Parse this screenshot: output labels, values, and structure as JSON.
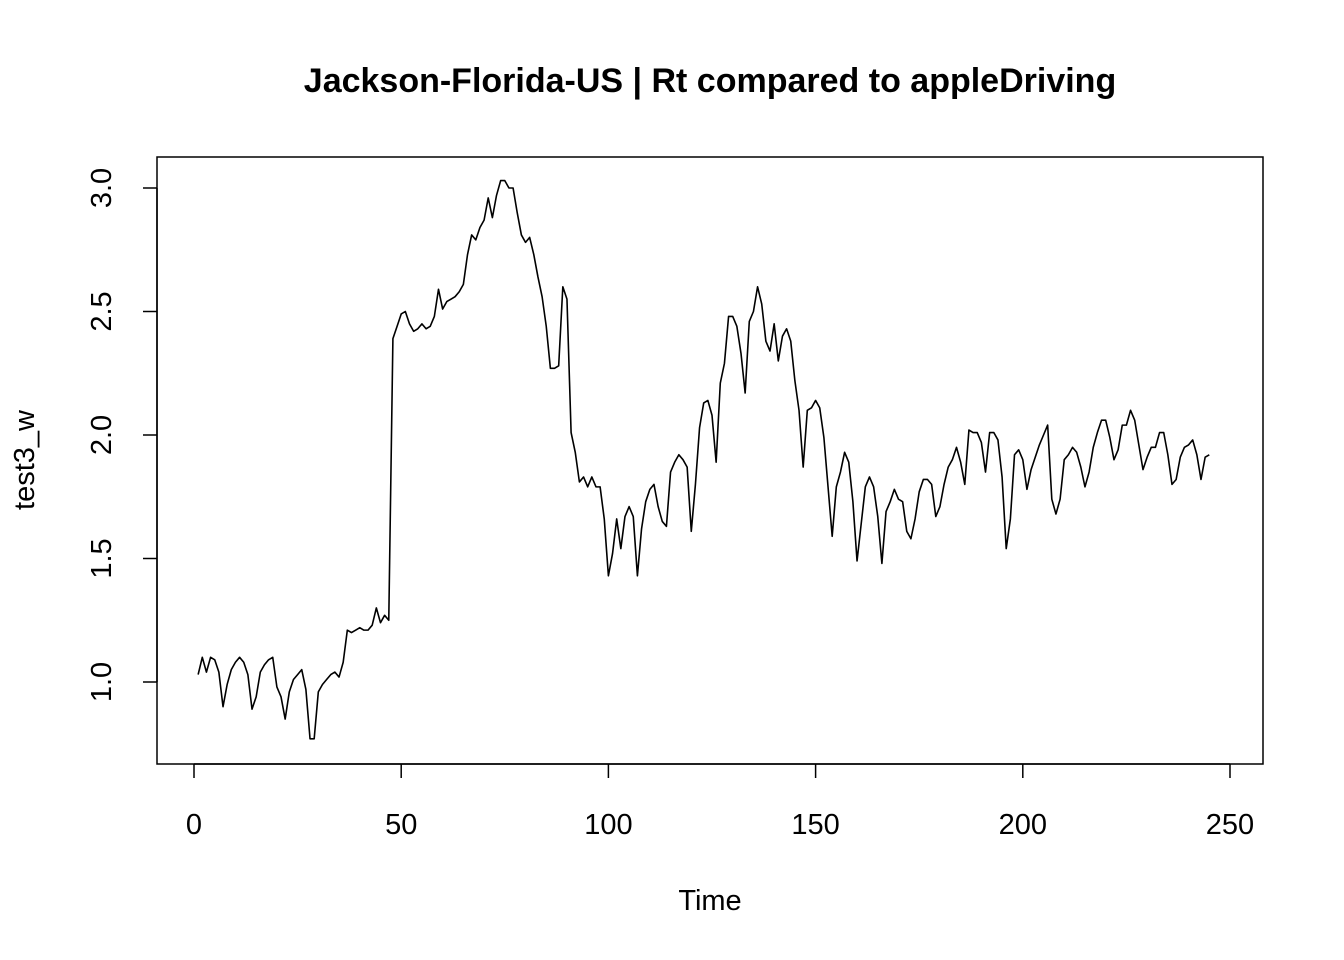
{
  "chart_data": {
    "type": "line",
    "title": "Jackson-Florida-US | Rt compared to appleDriving",
    "xlabel": "Time",
    "ylabel": "test3_w",
    "xlim": [
      0,
      250
    ],
    "ylim": [
      0.8,
      3.0
    ],
    "x_ticks": [
      "0",
      "50",
      "100",
      "150",
      "200",
      "250"
    ],
    "y_ticks": [
      "1.0",
      "1.5",
      "2.0",
      "2.5",
      "3.0"
    ],
    "x_start": 1,
    "grid": false,
    "legend": "none",
    "series": [
      {
        "color": "#000000",
        "values": [
          1.03,
          1.1,
          1.04,
          1.1,
          1.09,
          1.04,
          0.9,
          0.99,
          1.05,
          1.08,
          1.1,
          1.08,
          1.03,
          0.89,
          0.94,
          1.04,
          1.07,
          1.09,
          1.1,
          0.98,
          0.94,
          0.85,
          0.96,
          1.01,
          1.03,
          1.05,
          0.97,
          0.77,
          0.77,
          0.96,
          0.99,
          1.01,
          1.03,
          1.04,
          1.02,
          1.08,
          1.21,
          1.2,
          1.21,
          1.22,
          1.21,
          1.21,
          1.23,
          1.3,
          1.24,
          1.27,
          1.25,
          2.39,
          2.44,
          2.49,
          2.5,
          2.45,
          2.42,
          2.43,
          2.45,
          2.43,
          2.44,
          2.48,
          2.59,
          2.51,
          2.54,
          2.55,
          2.56,
          2.58,
          2.61,
          2.73,
          2.81,
          2.79,
          2.84,
          2.87,
          2.96,
          2.88,
          2.97,
          3.03,
          3.03,
          3.0,
          3.0,
          2.9,
          2.81,
          2.78,
          2.8,
          2.73,
          2.64,
          2.56,
          2.44,
          2.27,
          2.27,
          2.28,
          2.6,
          2.55,
          2.01,
          1.93,
          1.81,
          1.83,
          1.79,
          1.83,
          1.79,
          1.79,
          1.66,
          1.43,
          1.52,
          1.66,
          1.54,
          1.67,
          1.71,
          1.67,
          1.43,
          1.62,
          1.73,
          1.78,
          1.8,
          1.71,
          1.65,
          1.63,
          1.85,
          1.89,
          1.92,
          1.9,
          1.87,
          1.61,
          1.8,
          2.03,
          2.13,
          2.14,
          2.08,
          1.89,
          2.21,
          2.29,
          2.48,
          2.48,
          2.44,
          2.33,
          2.17,
          2.46,
          2.5,
          2.6,
          2.53,
          2.38,
          2.34,
          2.45,
          2.3,
          2.4,
          2.43,
          2.38,
          2.22,
          2.1,
          1.87,
          2.1,
          2.11,
          2.14,
          2.11,
          1.99,
          1.79,
          1.59,
          1.79,
          1.85,
          1.93,
          1.89,
          1.73,
          1.49,
          1.64,
          1.79,
          1.83,
          1.79,
          1.67,
          1.48,
          1.69,
          1.73,
          1.78,
          1.74,
          1.73,
          1.61,
          1.58,
          1.66,
          1.77,
          1.82,
          1.82,
          1.8,
          1.67,
          1.71,
          1.8,
          1.87,
          1.9,
          1.95,
          1.89,
          1.8,
          2.02,
          2.01,
          2.01,
          1.97,
          1.85,
          2.01,
          2.01,
          1.98,
          1.83,
          1.54,
          1.66,
          1.92,
          1.94,
          1.9,
          1.78,
          1.86,
          1.91,
          1.96,
          2.0,
          2.04,
          1.74,
          1.68,
          1.74,
          1.9,
          1.92,
          1.95,
          1.93,
          1.87,
          1.79,
          1.85,
          1.95,
          2.01,
          2.06,
          2.06,
          1.99,
          1.9,
          1.94,
          2.04,
          2.04,
          2.1,
          2.06,
          1.96,
          1.86,
          1.91,
          1.95,
          1.95,
          2.01,
          2.01,
          1.92,
          1.8,
          1.82,
          1.91,
          1.95,
          1.96,
          1.98,
          1.92,
          1.82,
          1.91,
          1.92
        ]
      }
    ]
  }
}
